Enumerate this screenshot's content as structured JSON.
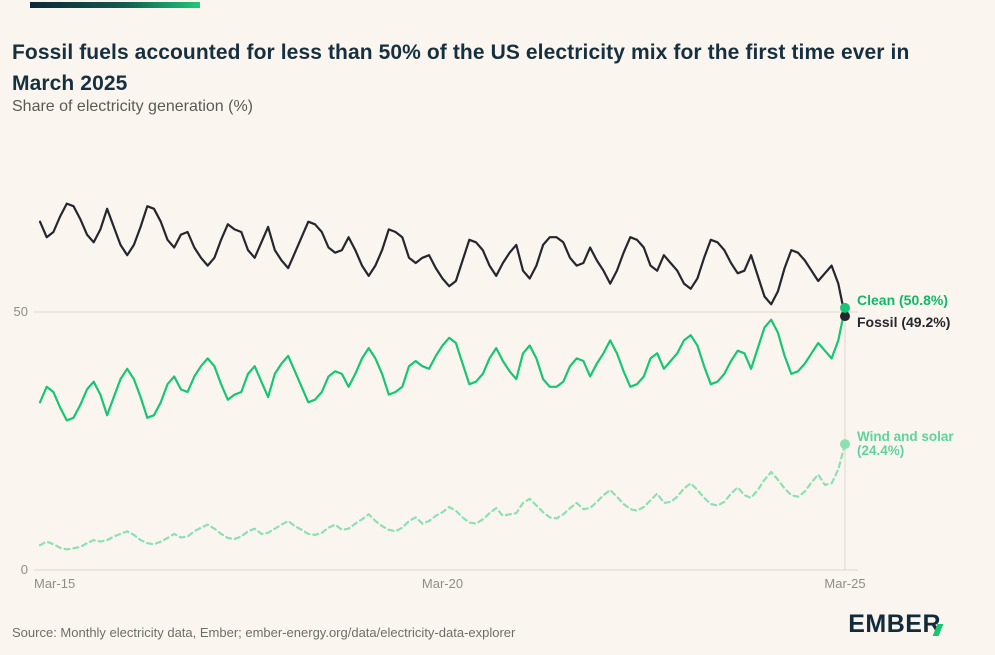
{
  "page": {
    "source": "Source: Monthly electricity data, Ember; ember-energy.org/data/electricity-data-explorer",
    "logo_prefix": "EMBE",
    "logo_last": "R"
  },
  "colors": {
    "background": "#faf6ef",
    "title": "#16303f",
    "grid": "#ddd7cd",
    "axis_text": "#8e8d87",
    "source_text": "#6e6e68",
    "logo": "#122b3a",
    "logo_accent": "#17c673",
    "accent_gradient_start": "#0d2836",
    "accent_gradient_end": "#1fc877"
  },
  "chart_data": {
    "type": "line",
    "title": "Fossil fuels accounted for less than 50% of the US electricity mix for the first time ever in March 2025",
    "subtitle": "Share of electricity generation (%)",
    "x_unit": "month",
    "x_start": "Mar-2015",
    "x_end": "Mar-2025",
    "ylim": [
      0,
      75
    ],
    "grid": "horizontal-only",
    "legend_position": "end-of-line-labels",
    "x_ticks": [
      {
        "label": "Mar-15",
        "index": 0
      },
      {
        "label": "Mar-20",
        "index": 60
      },
      {
        "label": "Mar-25",
        "index": 120
      }
    ],
    "y_ticks": [
      {
        "label": "0",
        "value": 0
      },
      {
        "label": "50",
        "value": 50
      }
    ],
    "series": [
      {
        "name": "Fossil",
        "label": "Fossil (49.2%)",
        "color": "#26262e",
        "label_color": "#26262e",
        "style": "solid",
        "end_value": 49.2,
        "values": [
          67.5,
          64.5,
          65.5,
          68.5,
          71.0,
          70.5,
          68.0,
          65.0,
          63.5,
          66.0,
          70.0,
          66.5,
          63.0,
          61.0,
          63.0,
          66.5,
          70.5,
          70.0,
          67.5,
          64.0,
          62.5,
          65.0,
          65.5,
          62.5,
          60.5,
          59.0,
          60.5,
          64.0,
          67.0,
          66.0,
          65.5,
          62.0,
          60.5,
          63.5,
          66.5,
          62.0,
          60.0,
          58.5,
          61.5,
          64.5,
          67.5,
          67.0,
          65.5,
          62.5,
          61.5,
          62.0,
          64.5,
          62.0,
          59.0,
          57.0,
          59.0,
          62.0,
          66.0,
          65.5,
          64.5,
          60.5,
          59.5,
          60.5,
          61.0,
          58.5,
          56.5,
          55.0,
          56.0,
          60.0,
          64.0,
          63.5,
          62.0,
          59.0,
          57.0,
          59.5,
          61.5,
          63.0,
          58.0,
          56.5,
          59.0,
          63.0,
          64.5,
          64.5,
          63.5,
          60.5,
          59.0,
          59.5,
          62.5,
          60.0,
          58.0,
          55.5,
          58.0,
          61.5,
          64.5,
          64.0,
          62.5,
          59.0,
          58.0,
          61.0,
          59.5,
          58.0,
          55.5,
          54.5,
          56.5,
          60.5,
          64.0,
          63.5,
          62.0,
          59.5,
          57.5,
          58.0,
          61.0,
          57.0,
          53.0,
          51.5,
          54.0,
          58.5,
          62.0,
          61.5,
          60.0,
          58.0,
          56.0,
          57.5,
          59.0,
          55.5,
          49.2
        ]
      },
      {
        "name": "Clean",
        "label": "Clean (50.8%)",
        "color": "#17c673",
        "label_color": "#10b868",
        "style": "solid",
        "end_value": 50.8,
        "values": [
          32.5,
          35.5,
          34.5,
          31.5,
          29.0,
          29.5,
          32.0,
          35.0,
          36.5,
          34.0,
          30.0,
          33.5,
          37.0,
          39.0,
          37.0,
          33.5,
          29.5,
          30.0,
          32.5,
          36.0,
          37.5,
          35.0,
          34.5,
          37.5,
          39.5,
          41.0,
          39.5,
          36.0,
          33.0,
          34.0,
          34.5,
          38.0,
          39.5,
          36.5,
          33.5,
          38.0,
          40.0,
          41.5,
          38.5,
          35.5,
          32.5,
          33.0,
          34.5,
          37.5,
          38.5,
          38.0,
          35.5,
          38.0,
          41.0,
          43.0,
          41.0,
          38.0,
          34.0,
          34.5,
          35.5,
          39.5,
          40.5,
          39.5,
          39.0,
          41.5,
          43.5,
          45.0,
          44.0,
          40.0,
          36.0,
          36.5,
          38.0,
          41.0,
          43.0,
          40.5,
          38.5,
          37.0,
          42.0,
          43.5,
          41.0,
          37.0,
          35.5,
          35.5,
          36.5,
          39.5,
          41.0,
          40.5,
          37.5,
          40.0,
          42.0,
          44.5,
          42.0,
          38.5,
          35.5,
          36.0,
          37.5,
          41.0,
          42.0,
          39.0,
          40.5,
          42.0,
          44.5,
          45.5,
          43.5,
          39.5,
          36.0,
          36.5,
          38.0,
          40.5,
          42.5,
          42.0,
          39.0,
          43.0,
          47.0,
          48.5,
          46.0,
          41.5,
          38.0,
          38.5,
          40.0,
          42.0,
          44.0,
          42.5,
          41.0,
          44.5,
          50.8
        ]
      },
      {
        "name": "Wind and solar",
        "label": "Wind and solar (24.4%)",
        "label_line1": "Wind and solar",
        "label_line2": "(24.4%)",
        "color": "#8ce0b2",
        "label_color": "#5fd39a",
        "style": "dashed",
        "end_value": 24.4,
        "values": [
          4.8,
          5.5,
          5.0,
          4.3,
          4.0,
          4.2,
          4.5,
          5.2,
          5.8,
          5.5,
          5.8,
          6.5,
          7.0,
          7.5,
          6.8,
          5.8,
          5.2,
          5.0,
          5.5,
          6.2,
          7.0,
          6.3,
          6.5,
          7.5,
          8.2,
          8.8,
          8.0,
          7.0,
          6.2,
          6.0,
          6.5,
          7.5,
          8.0,
          7.0,
          7.2,
          8.0,
          8.8,
          9.5,
          8.5,
          7.8,
          7.0,
          6.8,
          7.2,
          8.2,
          8.8,
          7.8,
          8.0,
          9.0,
          9.8,
          10.8,
          9.5,
          8.5,
          7.8,
          7.5,
          8.2,
          9.5,
          10.2,
          9.0,
          9.5,
          10.5,
          11.2,
          12.2,
          11.5,
          10.2,
          9.2,
          9.0,
          9.8,
          11.0,
          12.0,
          10.5,
          10.8,
          11.0,
          13.0,
          13.8,
          12.5,
          11.2,
          10.2,
          10.0,
          10.8,
          12.0,
          13.0,
          11.8,
          12.0,
          13.2,
          14.5,
          15.5,
          14.2,
          12.8,
          11.8,
          11.5,
          12.2,
          13.5,
          14.8,
          13.0,
          13.2,
          14.2,
          15.8,
          16.8,
          15.5,
          14.0,
          12.8,
          12.5,
          13.2,
          14.8,
          16.0,
          14.5,
          14.0,
          15.5,
          17.5,
          19.0,
          17.5,
          15.8,
          14.5,
          14.2,
          15.2,
          17.0,
          18.5,
          16.5,
          16.8,
          19.5,
          24.4
        ]
      }
    ]
  }
}
